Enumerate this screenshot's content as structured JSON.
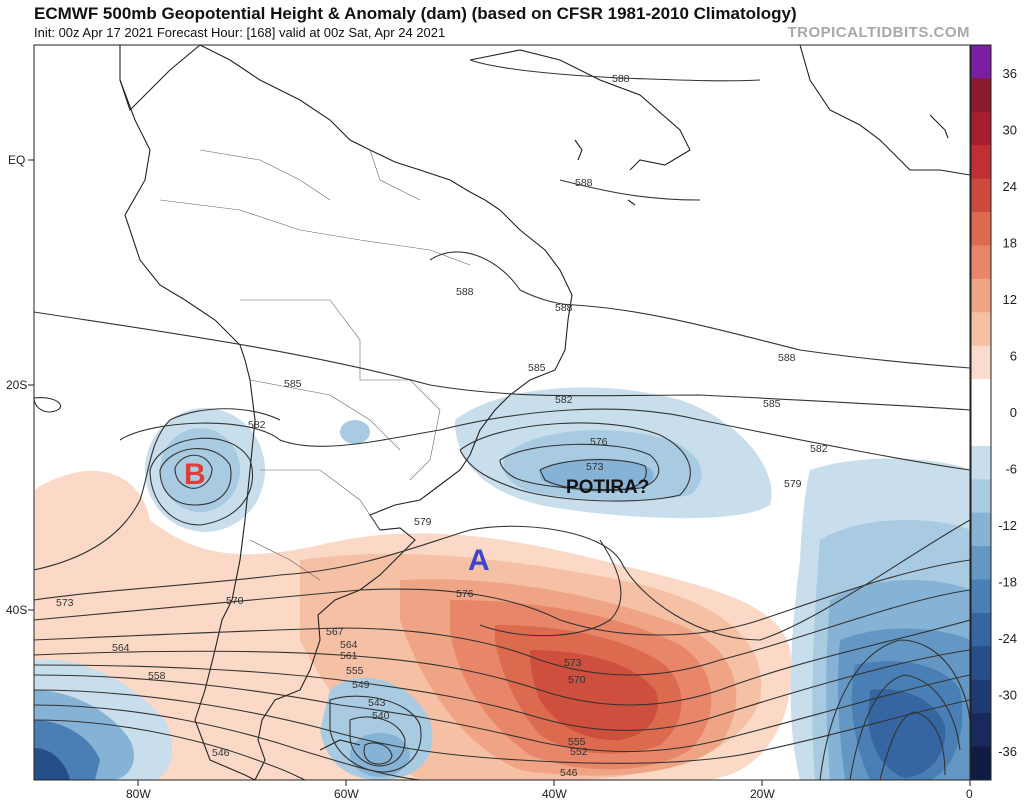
{
  "header": {
    "title": "ECMWF 500mb Geopotential Height & Anomaly (dam) (based on CFSR 1981-2010 Climatology)",
    "subtitle": "Init: 00z Apr 17 2021   Forecast Hour: [168]   valid at 00z Sat, Apr 24 2021",
    "brand": "TROPICALTIDBITS.COM"
  },
  "axes": {
    "lat_labels": [
      "EQ",
      "20S",
      "40S"
    ],
    "lon_labels": [
      "80W",
      "60W",
      "40W",
      "20W",
      "0"
    ]
  },
  "colorbar": {
    "labels": [
      "36",
      "30",
      "24",
      "18",
      "12",
      "6",
      "0",
      "-6",
      "-12",
      "-18",
      "-24",
      "-30",
      "-36"
    ],
    "colors": [
      "#7b1fa2",
      "#8e1a2f",
      "#a61e2e",
      "#bf2f34",
      "#cc4a3c",
      "#dc6a4e",
      "#e8866a",
      "#f0a486",
      "#f6c0a5",
      "#fbdccc",
      "#ffffff",
      "#ffffff",
      "#c9deec",
      "#a8cbe2",
      "#86b3d5",
      "#6597c4",
      "#4a7fb5",
      "#3566a1",
      "#264e8a",
      "#1d3a72",
      "#182a5c",
      "#101c44"
    ]
  },
  "annotations": {
    "low_label": "B",
    "high_label": "A",
    "storm_label": "POTIRA?",
    "low_color": "#e23b3b",
    "high_color": "#3b46cc"
  },
  "contour_labels": [
    "588",
    "588",
    "588",
    "588",
    "588",
    "585",
    "585",
    "585",
    "582",
    "582",
    "582",
    "579",
    "579",
    "576",
    "576",
    "573",
    "573",
    "573",
    "570",
    "570",
    "567",
    "564",
    "564",
    "561",
    "558",
    "555",
    "555",
    "552",
    "549",
    "546",
    "546",
    "543",
    "540"
  ]
}
